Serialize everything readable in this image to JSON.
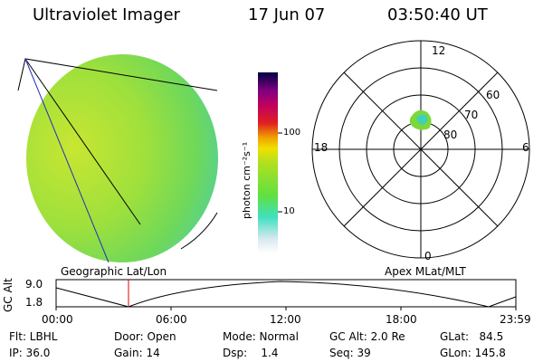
{
  "header": {
    "instrument": "Ultraviolet Imager",
    "date": "17 Jun 07",
    "time": "03:50:40 UT"
  },
  "colorbar": {
    "unit_label": "photon cm⁻²s⁻¹",
    "ticks": [
      "100",
      "10"
    ]
  },
  "panels": {
    "left_label": "Geographic Lat/Lon",
    "right_label": "Apex MLat/MLT"
  },
  "polar_plot": {
    "mlt_labels": [
      "12",
      "18",
      "6",
      "0"
    ],
    "lat_labels": [
      "60",
      "70",
      "80"
    ]
  },
  "altitude_strip": {
    "axis_label": "GC Alt",
    "y_ticks": [
      "9.0",
      "1.8"
    ],
    "time_ticks": [
      "00:00",
      "06:00",
      "12:00",
      "18:00",
      "23:59"
    ],
    "cursor_color": "#e00000"
  },
  "status": {
    "flt": "Flt: LBHL",
    "ip": "IP: 36.0",
    "door": "Door: Open",
    "gain": "Gain: 14",
    "mode": "Mode: Normal",
    "dsp": "Dsp:    1.4",
    "gc_alt": "GC Alt: 2.0 Re",
    "seq": "Seq: 39",
    "glat": "GLat:   84.5",
    "glon": "GLon: 145.8"
  }
}
